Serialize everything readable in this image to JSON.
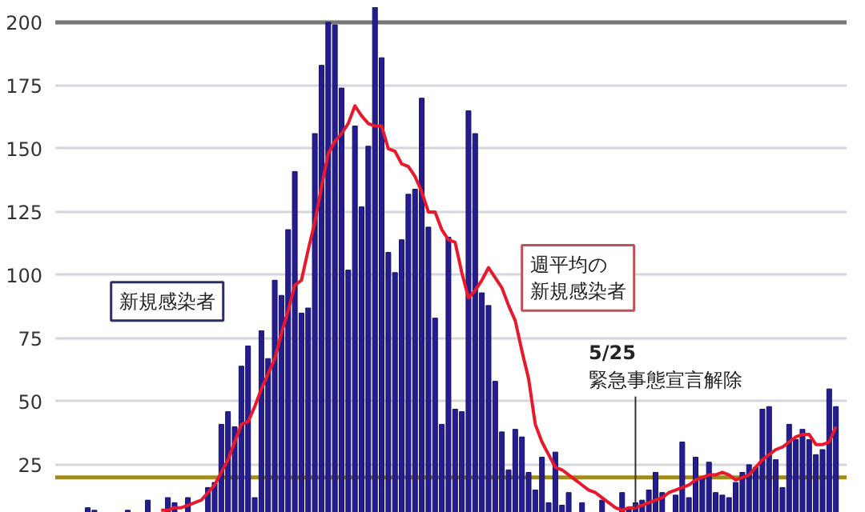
{
  "chart_data": {
    "type": "bar",
    "categories": [
      null,
      null,
      null,
      null,
      null,
      null,
      null,
      null,
      null,
      null,
      null,
      null,
      null,
      null,
      null,
      null,
      null,
      null,
      null,
      null,
      null,
      null,
      null,
      null,
      null,
      null,
      null,
      null,
      null,
      null,
      null,
      null,
      null,
      null,
      null,
      null,
      null,
      null,
      null,
      null,
      null,
      null,
      null,
      null,
      null,
      null,
      null,
      null,
      null,
      null,
      null,
      null,
      null,
      null,
      null,
      null,
      null,
      null,
      null,
      null,
      null,
      null,
      null,
      null,
      null,
      null,
      null,
      null,
      null,
      null,
      null,
      null,
      null,
      null,
      null,
      null,
      null,
      null,
      null,
      null,
      null,
      null,
      null,
      null,
      null,
      null,
      null,
      null,
      null,
      null,
      null,
      null,
      null,
      null,
      null,
      null,
      null,
      null,
      null,
      null,
      null,
      null,
      null,
      null,
      null,
      null,
      null,
      null,
      null,
      null,
      null,
      null,
      null,
      null
    ],
    "series": [
      {
        "color": "#251d8f",
        "values": [
          null,
          8,
          7,
          null,
          null,
          null,
          null,
          7,
          null,
          null,
          11,
          null,
          null,
          12,
          10,
          null,
          12,
          null,
          null,
          16,
          18,
          41,
          46,
          40,
          64,
          72,
          12,
          78,
          67,
          98,
          92,
          118,
          141,
          85,
          87,
          156,
          183,
          200,
          199,
          174,
          102,
          159,
          127,
          151,
          206,
          186,
          109,
          101,
          114,
          132,
          134,
          170,
          119,
          83,
          41,
          115,
          47,
          46,
          165,
          156,
          93,
          88,
          58,
          38,
          23,
          39,
          36,
          22,
          15,
          28,
          10,
          30,
          9,
          14,
          null,
          10,
          null,
          null,
          11,
          null,
          null,
          14,
          8,
          10,
          11,
          15,
          22,
          14,
          null,
          13,
          34,
          12,
          28,
          20,
          26,
          14,
          13,
          12,
          18,
          22,
          25,
          24,
          47,
          48,
          27,
          16,
          41,
          35,
          39,
          35,
          29,
          31,
          55,
          48
        ]
      },
      {
        "type": "line",
        "color": "#e8192c",
        "values": [
          null,
          null,
          null,
          null,
          null,
          null,
          null,
          null,
          null,
          null,
          null,
          null,
          7,
          7,
          8,
          8,
          9,
          10,
          11,
          14,
          17,
          22,
          27,
          34,
          41,
          42,
          48,
          55,
          61,
          67,
          77,
          86,
          96,
          98,
          110,
          121,
          135,
          148,
          153,
          156,
          160,
          167,
          163,
          160,
          159,
          159,
          150,
          149,
          144,
          143,
          139,
          133,
          125,
          125,
          118,
          114,
          113,
          101,
          91,
          94,
          98,
          103,
          99,
          95,
          88,
          82,
          70,
          59,
          41,
          34,
          29,
          24,
          23,
          21,
          19,
          17,
          15,
          14,
          12,
          10,
          8,
          7,
          8,
          8,
          9,
          10,
          11,
          12,
          14,
          15,
          16,
          17,
          19,
          20,
          21,
          21,
          22,
          21,
          19,
          20,
          21,
          24,
          27,
          29,
          31,
          32,
          34,
          36,
          37,
          37,
          33,
          33,
          34,
          40
        ]
      }
    ],
    "ylim": [
      6,
      206
    ],
    "yticks": [
      25,
      50,
      75,
      100,
      125,
      150,
      175,
      200
    ],
    "grid": "y",
    "ref_lines": [
      {
        "axis": "y",
        "value": 20,
        "color": "#a08c1c"
      },
      {
        "axis": "y",
        "value": 200,
        "color": "#777777"
      }
    ],
    "annotations": [
      "新規感染者",
      "週平均の新規感染者",
      "5/25",
      "緊急事態宣言解除"
    ]
  }
}
